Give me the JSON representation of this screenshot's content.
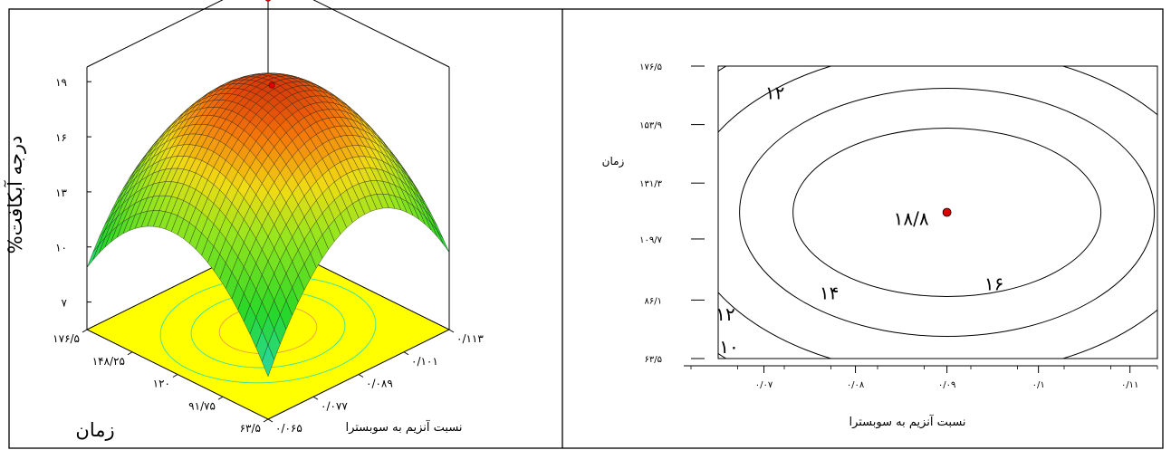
{
  "chart_data": [
    {
      "type": "surface",
      "panel": "left",
      "zlabel": "%درجه آبکافت",
      "y_axis_label": "زمان",
      "x_axis_label": "نسبت آنزیم به سوبسترا",
      "z_ticks": [
        "۷",
        "۱۰",
        "۱۳",
        "۱۶",
        "۱۹"
      ],
      "z_values": [
        7,
        10,
        13,
        16,
        19
      ],
      "time_ticks": [
        "۱۷۶/۵",
        "۱۴۸/۲۵",
        "۱۲۰",
        "۹۱/۷۵",
        "۶۳/۵"
      ],
      "time_values": [
        176.5,
        148.25,
        120,
        91.75,
        63.5
      ],
      "ratio_ticks": [
        "۰/۱۱۳",
        "۰/۱۰۱",
        "۰/۰۸۹",
        "۰/۰۷۷",
        "۰/۰۶۵"
      ],
      "ratio_values": [
        0.113,
        0.101,
        0.089,
        0.077,
        0.065
      ],
      "optimum": {
        "ratio": 0.09,
        "time": 120,
        "value": 18.8
      },
      "colors": {
        "surface_low": "#27c8ff",
        "surface_mid": "#3fdc1e",
        "surface_high": "#ff6a00",
        "floor": "#ffff00",
        "point": "#e00000"
      }
    },
    {
      "type": "contour",
      "panel": "right",
      "xlabel": "نسبت آنزیم به سوبسترا",
      "ylabel": "زمان",
      "x_ticks": [
        "۰/۰۷",
        "۰/۰۸",
        "۰/۰۹",
        "۰/۱",
        "۰/۱۱"
      ],
      "x_values": [
        0.07,
        0.08,
        0.09,
        0.1,
        0.11
      ],
      "y_ticks": [
        "۱۷۶/۵",
        "۱۵۳/۹",
        "۱۳۱/۳",
        "۱۰۹/۷",
        "۸۶/۱",
        "۶۳/۵"
      ],
      "y_values": [
        176.5,
        153.9,
        131.3,
        109.7,
        86.1,
        63.5
      ],
      "xlim": [
        0.065,
        0.113
      ],
      "ylim": [
        63.5,
        176.5
      ],
      "contour_levels": [
        {
          "level": 18,
          "label": ""
        },
        {
          "level": 16,
          "label": "۱۶"
        },
        {
          "level": 14,
          "label": "۱۴"
        },
        {
          "level": 12,
          "label": "۱۲"
        },
        {
          "level": 10,
          "label": "۱۰"
        }
      ],
      "optimum": {
        "x": 0.09,
        "y": 120,
        "label": "۱۸/۸"
      },
      "colors": {
        "point": "#e00000"
      }
    }
  ]
}
